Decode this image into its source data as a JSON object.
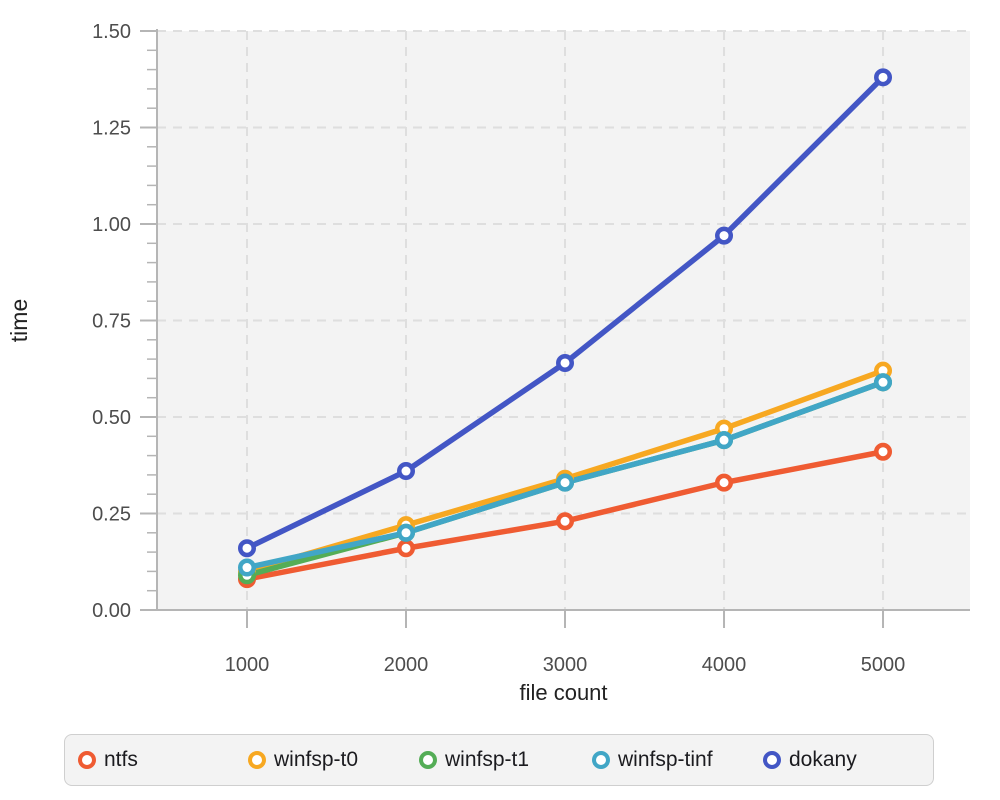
{
  "figure": {
    "background": "#ffffff",
    "plot_background": "#f3f3f3",
    "grid_color": "#dedede",
    "axis_color": "#b5b5b5",
    "tick_label_color": "#4d4d4d",
    "axis_title_color": "#222222",
    "legend_background": "#f3f3f3",
    "legend_border": "#cfcfcf",
    "marker_fill": "#ffffff"
  },
  "chart_data": {
    "type": "line",
    "title": "",
    "xlabel": "file count",
    "ylabel": "time",
    "x": [
      1000,
      2000,
      3000,
      4000,
      5000
    ],
    "xtick_labels": [
      "1000",
      "2000",
      "3000",
      "4000",
      "5000"
    ],
    "xlim": [
      434,
      5547
    ],
    "ylim": [
      0,
      1.5
    ],
    "ytick_values": [
      0,
      0.25,
      0.5,
      0.75,
      1.0,
      1.25,
      1.5
    ],
    "ytick_labels": [
      "0.00",
      "0.25",
      "0.50",
      "0.75",
      "1.00",
      "1.25",
      "1.50"
    ],
    "y_minor_step": 0.05,
    "grid": true,
    "grid_style": "dashed",
    "legend_position": "bottom",
    "series": [
      {
        "name": "ntfs",
        "color": "#ef5b32",
        "values": [
          0.08,
          0.16,
          0.23,
          0.33,
          0.41
        ]
      },
      {
        "name": "winfsp-t0",
        "color": "#f7a821",
        "values": [
          0.1,
          0.22,
          0.34,
          0.47,
          0.62
        ]
      },
      {
        "name": "winfsp-t1",
        "color": "#54ad56",
        "values": [
          0.09,
          0.2,
          0.33,
          0.44,
          0.59
        ]
      },
      {
        "name": "winfsp-tinf",
        "color": "#41a6c6",
        "values": [
          0.11,
          0.2,
          0.33,
          0.44,
          0.59
        ]
      },
      {
        "name": "dokany",
        "color": "#4356c5",
        "values": [
          0.16,
          0.36,
          0.64,
          0.97,
          1.38
        ]
      }
    ]
  }
}
